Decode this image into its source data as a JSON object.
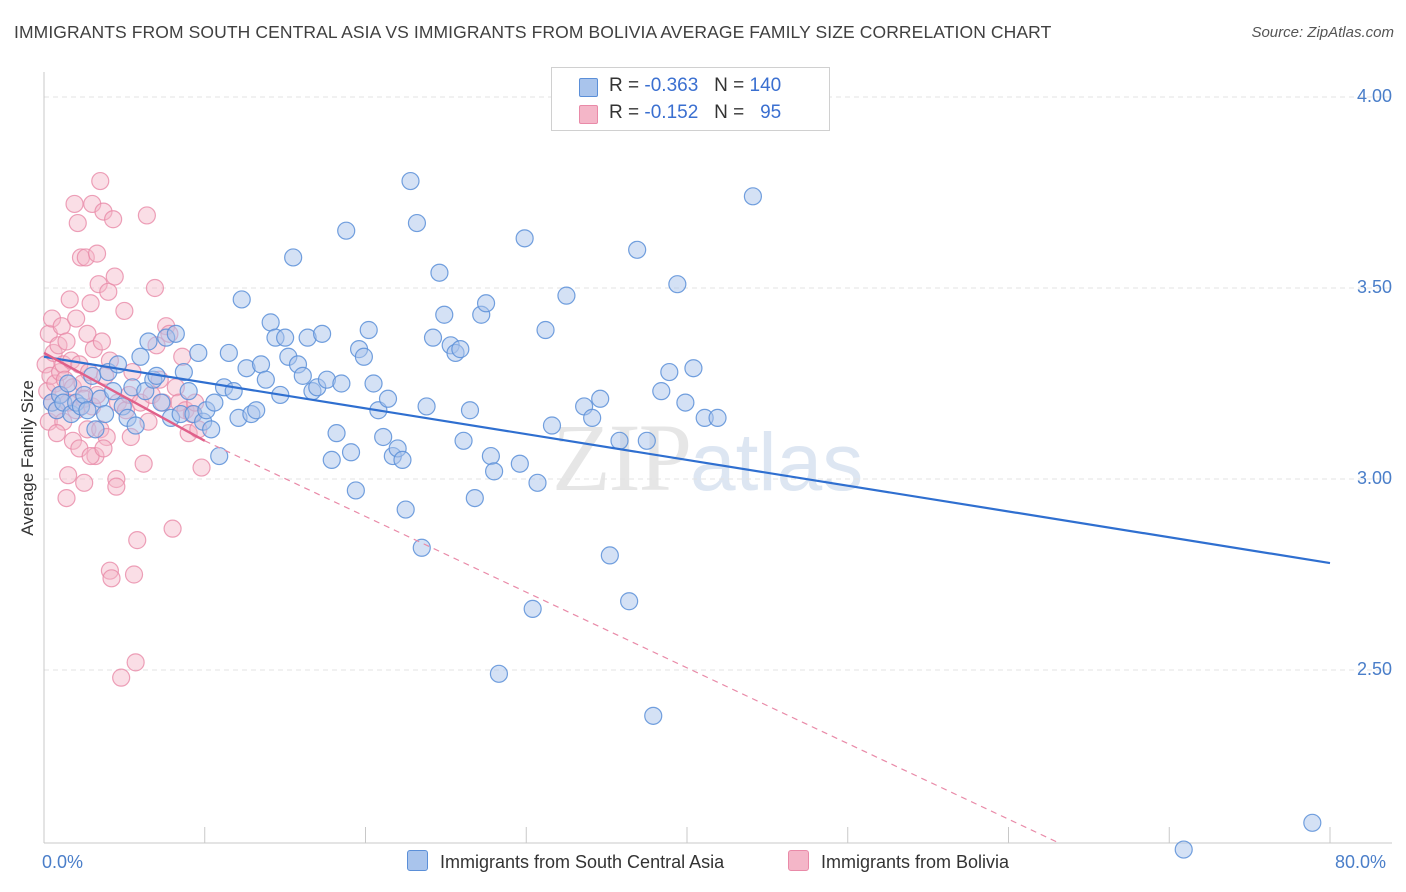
{
  "title": "IMMIGRANTS FROM SOUTH CENTRAL ASIA VS IMMIGRANTS FROM BOLIVIA AVERAGE FAMILY SIZE CORRELATION CHART",
  "source": "Source: ZipAtlas.com",
  "watermark": {
    "zip": "ZIP",
    "atlas": "atlas"
  },
  "legend": {
    "rows": [
      {
        "r_label": "R =",
        "r_value": "-0.363",
        "n_label": "N =",
        "n_value": "140"
      },
      {
        "r_label": "R =",
        "r_value": "-0.152",
        "n_label": "N =",
        "n_value": "95"
      }
    ]
  },
  "colors": {
    "blue_fill": "#a9c4ec",
    "blue_stroke": "#5b8fd8",
    "blue_line": "#2f6fd0",
    "pink_fill": "#f4b6c8",
    "pink_stroke": "#e98aa8",
    "pink_line": "#e0608a",
    "grid": "#e3e3e3",
    "axis_text": "#4a7ec9"
  },
  "chart_data": {
    "type": "scatter",
    "title": "IMMIGRANTS FROM SOUTH CENTRAL ASIA VS IMMIGRANTS FROM BOLIVIA AVERAGE FAMILY SIZE CORRELATION CHART",
    "xlabel": "",
    "ylabel": "Average Family Size",
    "xlim": [
      0,
      80
    ],
    "ylim": [
      2.05,
      4.08
    ],
    "x_tick_labels": [
      "0.0%",
      "80.0%"
    ],
    "y_ticks": [
      2.5,
      3.0,
      3.5,
      4.0
    ],
    "y_tick_labels": [
      "2.50",
      "3.00",
      "3.50",
      "4.00"
    ],
    "grid": true,
    "legend_position": "top-center",
    "series": [
      {
        "name": "Immigrants from South Central Asia",
        "color": "#5b8fd8",
        "trend": {
          "x": [
            0,
            80
          ],
          "y": [
            3.32,
            2.78
          ]
        },
        "points": [
          [
            0.5,
            3.2
          ],
          [
            0.8,
            3.18
          ],
          [
            1.0,
            3.22
          ],
          [
            1.2,
            3.2
          ],
          [
            1.5,
            3.25
          ],
          [
            1.7,
            3.17
          ],
          [
            2.0,
            3.2
          ],
          [
            2.3,
            3.19
          ],
          [
            2.5,
            3.22
          ],
          [
            2.7,
            3.18
          ],
          [
            3.0,
            3.27
          ],
          [
            3.2,
            3.13
          ],
          [
            3.5,
            3.21
          ],
          [
            3.8,
            3.17
          ],
          [
            4.0,
            3.28
          ],
          [
            4.3,
            3.23
          ],
          [
            4.6,
            3.3
          ],
          [
            4.9,
            3.19
          ],
          [
            5.2,
            3.16
          ],
          [
            5.5,
            3.24
          ],
          [
            5.7,
            3.14
          ],
          [
            6.0,
            3.32
          ],
          [
            6.3,
            3.23
          ],
          [
            6.5,
            3.36
          ],
          [
            6.8,
            3.26
          ],
          [
            7.0,
            3.27
          ],
          [
            7.3,
            3.2
          ],
          [
            7.6,
            3.37
          ],
          [
            7.9,
            3.16
          ],
          [
            8.2,
            3.38
          ],
          [
            8.5,
            3.17
          ],
          [
            8.7,
            3.28
          ],
          [
            9.0,
            3.23
          ],
          [
            9.3,
            3.17
          ],
          [
            9.6,
            3.33
          ],
          [
            9.9,
            3.15
          ],
          [
            10.1,
            3.18
          ],
          [
            10.4,
            3.13
          ],
          [
            10.6,
            3.2
          ],
          [
            10.9,
            3.06
          ],
          [
            11.2,
            3.24
          ],
          [
            11.5,
            3.33
          ],
          [
            11.8,
            3.23
          ],
          [
            12.1,
            3.16
          ],
          [
            12.3,
            3.47
          ],
          [
            12.6,
            3.29
          ],
          [
            12.9,
            3.17
          ],
          [
            13.2,
            3.18
          ],
          [
            13.5,
            3.3
          ],
          [
            13.8,
            3.26
          ],
          [
            14.1,
            3.41
          ],
          [
            14.4,
            3.37
          ],
          [
            14.7,
            3.22
          ],
          [
            15.0,
            3.37
          ],
          [
            15.2,
            3.32
          ],
          [
            15.5,
            3.58
          ],
          [
            15.8,
            3.3
          ],
          [
            16.1,
            3.27
          ],
          [
            16.4,
            3.37
          ],
          [
            16.7,
            3.23
          ],
          [
            17.0,
            3.24
          ],
          [
            17.3,
            3.38
          ],
          [
            17.6,
            3.26
          ],
          [
            17.9,
            3.05
          ],
          [
            18.2,
            3.12
          ],
          [
            18.5,
            3.25
          ],
          [
            18.8,
            3.65
          ],
          [
            19.1,
            3.07
          ],
          [
            19.4,
            2.97
          ],
          [
            19.6,
            3.34
          ],
          [
            19.9,
            3.32
          ],
          [
            20.2,
            3.39
          ],
          [
            20.5,
            3.25
          ],
          [
            20.8,
            3.18
          ],
          [
            21.1,
            3.11
          ],
          [
            21.4,
            3.21
          ],
          [
            21.7,
            3.06
          ],
          [
            22.0,
            3.08
          ],
          [
            22.3,
            3.05
          ],
          [
            22.5,
            2.92
          ],
          [
            22.8,
            3.78
          ],
          [
            23.2,
            3.67
          ],
          [
            23.5,
            2.82
          ],
          [
            23.8,
            3.19
          ],
          [
            24.2,
            3.37
          ],
          [
            24.6,
            3.54
          ],
          [
            24.9,
            3.43
          ],
          [
            25.3,
            3.35
          ],
          [
            25.6,
            3.33
          ],
          [
            25.9,
            3.34
          ],
          [
            26.1,
            3.1
          ],
          [
            26.5,
            3.18
          ],
          [
            26.8,
            2.95
          ],
          [
            27.2,
            3.43
          ],
          [
            27.5,
            3.46
          ],
          [
            27.8,
            3.06
          ],
          [
            28.0,
            3.02
          ],
          [
            28.3,
            2.49
          ],
          [
            29.6,
            3.04
          ],
          [
            29.9,
            3.63
          ],
          [
            30.4,
            2.66
          ],
          [
            30.7,
            2.99
          ],
          [
            31.2,
            3.39
          ],
          [
            31.6,
            3.14
          ],
          [
            32.5,
            3.48
          ],
          [
            33.6,
            3.19
          ],
          [
            34.1,
            3.16
          ],
          [
            34.6,
            3.21
          ],
          [
            35.2,
            2.8
          ],
          [
            35.8,
            3.1
          ],
          [
            36.4,
            2.68
          ],
          [
            36.9,
            3.6
          ],
          [
            37.5,
            3.1
          ],
          [
            37.9,
            2.38
          ],
          [
            38.4,
            3.23
          ],
          [
            38.9,
            3.28
          ],
          [
            39.4,
            3.51
          ],
          [
            39.9,
            3.2
          ],
          [
            40.4,
            3.29
          ],
          [
            41.1,
            3.16
          ],
          [
            41.9,
            3.16
          ],
          [
            44.1,
            3.74
          ],
          [
            70.9,
            2.03
          ],
          [
            78.9,
            2.1
          ]
        ]
      },
      {
        "name": "Immigrants from Bolivia",
        "color": "#e98aa8",
        "trend": {
          "x": [
            0,
            10
          ],
          "y": [
            3.33,
            3.1
          ]
        },
        "trend_dashed": {
          "x": [
            10,
            63
          ],
          "y": [
            3.1,
            2.05
          ]
        },
        "points": [
          [
            0.1,
            3.3
          ],
          [
            0.2,
            3.23
          ],
          [
            0.3,
            3.38
          ],
          [
            0.3,
            3.15
          ],
          [
            0.4,
            3.27
          ],
          [
            0.5,
            3.42
          ],
          [
            0.5,
            3.2
          ],
          [
            0.6,
            3.33
          ],
          [
            0.7,
            3.25
          ],
          [
            0.8,
            3.18
          ],
          [
            0.9,
            3.35
          ],
          [
            1.0,
            3.28
          ],
          [
            1.0,
            3.22
          ],
          [
            1.1,
            3.4
          ],
          [
            1.2,
            3.3
          ],
          [
            1.2,
            3.15
          ],
          [
            1.3,
            3.26
          ],
          [
            1.4,
            3.36
          ],
          [
            1.5,
            3.2
          ],
          [
            1.5,
            3.01
          ],
          [
            1.6,
            3.47
          ],
          [
            1.7,
            3.31
          ],
          [
            1.8,
            3.24
          ],
          [
            1.8,
            3.1
          ],
          [
            1.9,
            3.72
          ],
          [
            2.0,
            3.42
          ],
          [
            2.0,
            3.18
          ],
          [
            2.1,
            3.67
          ],
          [
            2.2,
            3.3
          ],
          [
            2.2,
            3.08
          ],
          [
            2.3,
            3.58
          ],
          [
            2.4,
            3.25
          ],
          [
            2.5,
            3.21
          ],
          [
            2.5,
            2.99
          ],
          [
            2.6,
            3.58
          ],
          [
            2.7,
            3.38
          ],
          [
            2.7,
            3.13
          ],
          [
            2.8,
            3.28
          ],
          [
            2.9,
            3.46
          ],
          [
            3.0,
            3.72
          ],
          [
            3.0,
            3.19
          ],
          [
            3.1,
            3.34
          ],
          [
            3.2,
            3.06
          ],
          [
            3.3,
            3.59
          ],
          [
            3.3,
            3.22
          ],
          [
            3.4,
            3.51
          ],
          [
            3.5,
            3.78
          ],
          [
            3.5,
            3.13
          ],
          [
            3.6,
            3.36
          ],
          [
            3.7,
            3.7
          ],
          [
            3.8,
            3.27
          ],
          [
            3.9,
            3.11
          ],
          [
            4.0,
            3.49
          ],
          [
            4.1,
            3.31
          ],
          [
            4.1,
            2.76
          ],
          [
            4.2,
            2.74
          ],
          [
            4.3,
            3.68
          ],
          [
            4.4,
            3.53
          ],
          [
            4.5,
            3.0
          ],
          [
            4.5,
            2.98
          ],
          [
            4.6,
            3.2
          ],
          [
            4.8,
            2.48
          ],
          [
            5.0,
            3.44
          ],
          [
            5.1,
            3.18
          ],
          [
            5.3,
            3.22
          ],
          [
            5.4,
            3.11
          ],
          [
            5.5,
            3.28
          ],
          [
            5.6,
            2.75
          ],
          [
            5.7,
            2.52
          ],
          [
            5.8,
            2.84
          ],
          [
            6.0,
            3.2
          ],
          [
            6.2,
            3.04
          ],
          [
            6.4,
            3.69
          ],
          [
            6.5,
            3.15
          ],
          [
            6.7,
            3.22
          ],
          [
            6.9,
            3.5
          ],
          [
            7.0,
            3.35
          ],
          [
            7.2,
            3.26
          ],
          [
            7.4,
            3.2
          ],
          [
            7.6,
            3.4
          ],
          [
            7.8,
            3.38
          ],
          [
            8.0,
            2.87
          ],
          [
            8.2,
            3.24
          ],
          [
            8.4,
            3.2
          ],
          [
            8.6,
            3.32
          ],
          [
            8.8,
            3.18
          ],
          [
            9.0,
            3.12
          ],
          [
            9.2,
            3.17
          ],
          [
            9.4,
            3.2
          ],
          [
            9.6,
            3.13
          ],
          [
            9.8,
            3.03
          ],
          [
            1.4,
            2.95
          ],
          [
            2.9,
            3.06
          ],
          [
            0.8,
            3.12
          ],
          [
            3.7,
            3.08
          ]
        ]
      }
    ]
  },
  "bottom_legend": [
    {
      "label": "Immigrants from South Central Asia"
    },
    {
      "label": "Immigrants from Bolivia"
    }
  ]
}
